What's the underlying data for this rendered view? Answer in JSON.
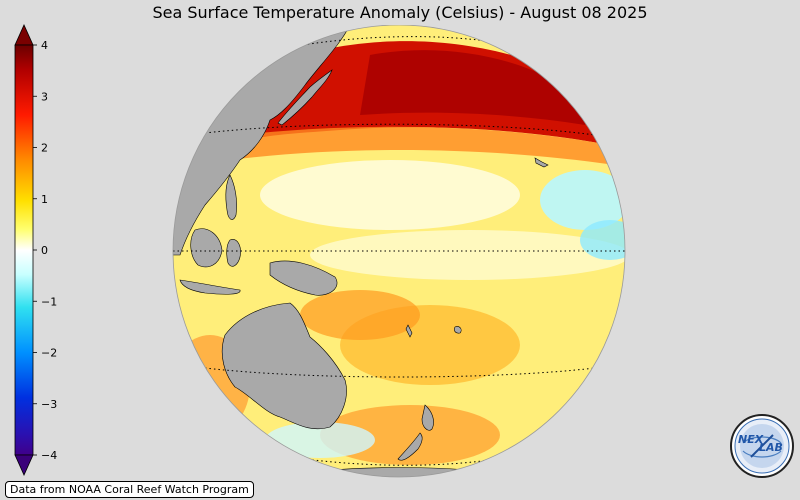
{
  "title": "Sea Surface Temperature Anomaly (Celsius) - August 08 2025",
  "colorbar": {
    "min": -4,
    "max": 4,
    "ticks": [
      {
        "value": 4,
        "label": "4"
      },
      {
        "value": 3,
        "label": "3"
      },
      {
        "value": 2,
        "label": "2"
      },
      {
        "value": 1,
        "label": "1"
      },
      {
        "value": 0,
        "label": "0"
      },
      {
        "value": -1,
        "label": "−1"
      },
      {
        "value": -2,
        "label": "−2"
      },
      {
        "value": -3,
        "label": "−3"
      },
      {
        "value": -4,
        "label": "−4"
      }
    ],
    "colors": [
      "#4b0082",
      "#0000ff",
      "#00bfff",
      "#ffffff",
      "#ffff00",
      "#ff8c00",
      "#ff0000",
      "#8b0000"
    ]
  },
  "map": {
    "projection": "orthographic",
    "land_color": "#a9a9a9",
    "ocean_base_color": "#ffee88"
  },
  "source_note": "Data from NOAA Coral Reef Watch Program",
  "logo": {
    "text": "NEXLAB",
    "text_left": "NEX",
    "text_right": "LAB"
  }
}
